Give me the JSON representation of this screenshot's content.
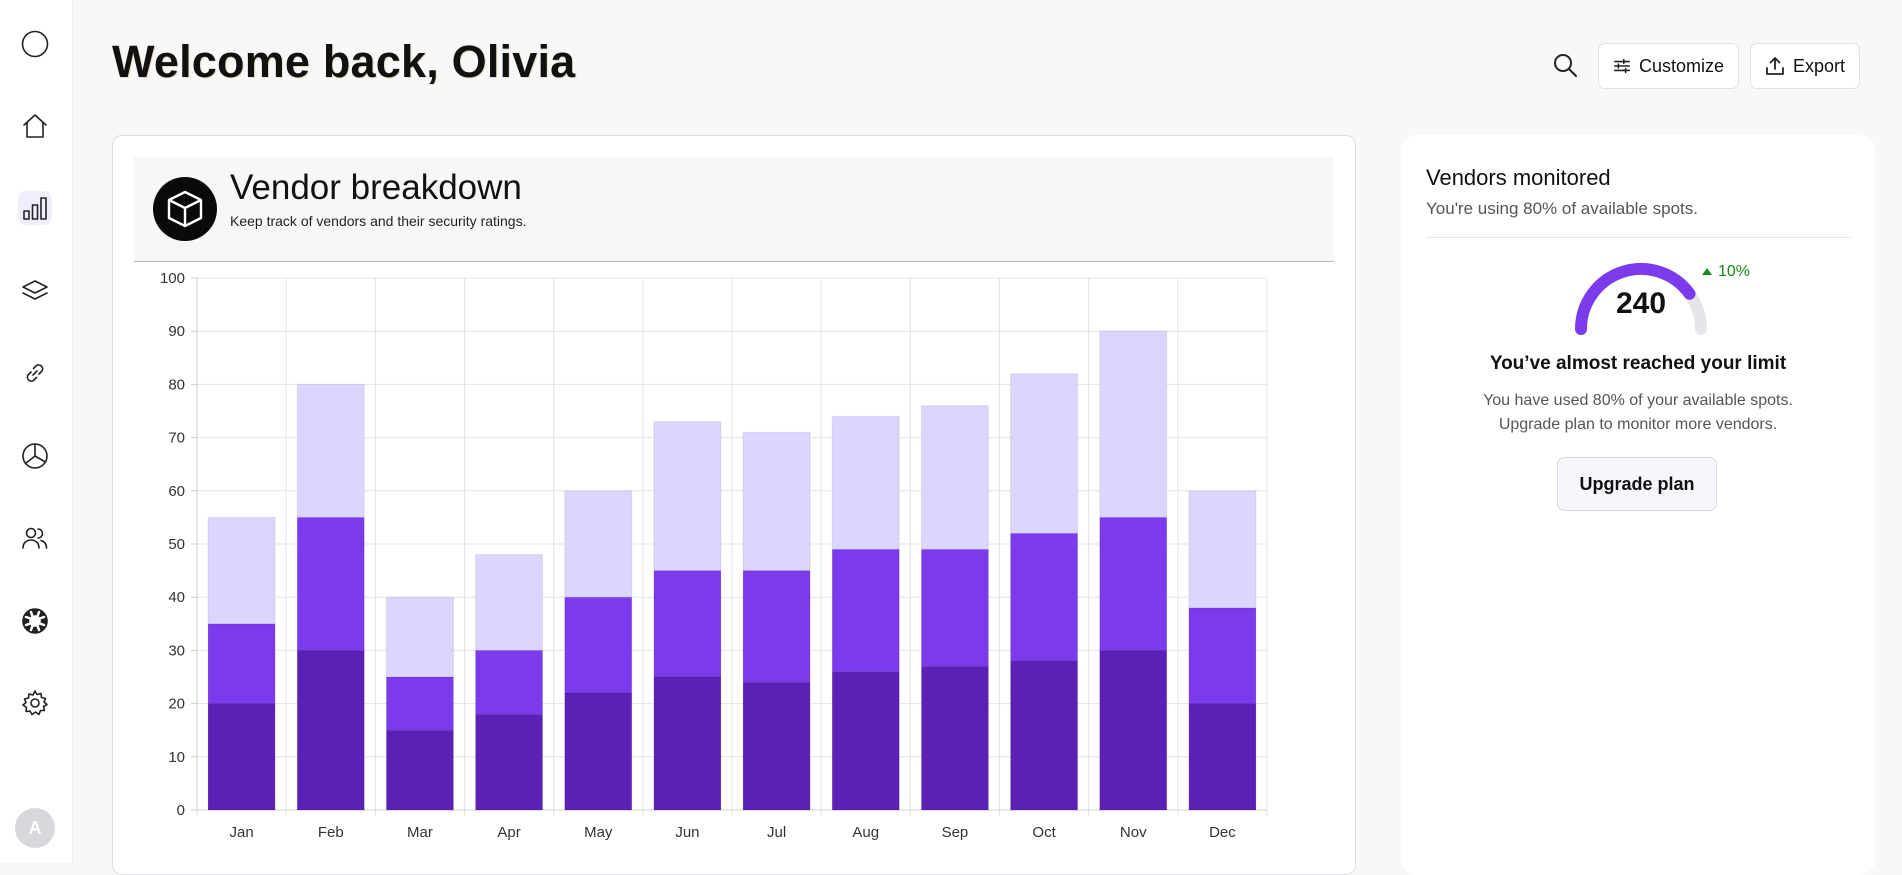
{
  "header": {
    "title": "Welcome back, Olivia",
    "customize_label": "Customize",
    "export_label": "Export"
  },
  "sidebar": {
    "items": [
      {
        "icon": "circle-icon"
      },
      {
        "icon": "home-icon"
      },
      {
        "icon": "bar-chart-icon",
        "active": true
      },
      {
        "icon": "layers-icon"
      },
      {
        "icon": "link-icon"
      },
      {
        "icon": "pie-chart-icon"
      },
      {
        "icon": "users-icon"
      },
      {
        "icon": "lifebuoy-icon"
      },
      {
        "icon": "gear-icon"
      }
    ],
    "avatar_initial": "A"
  },
  "vendor_card": {
    "title": "Vendor breakdown",
    "subtitle": "Keep track of vendors and their security ratings."
  },
  "chart_data": {
    "type": "bar",
    "stacked": true,
    "categories": [
      "Jan",
      "Feb",
      "Mar",
      "Apr",
      "May",
      "Jun",
      "Jul",
      "Aug",
      "Sep",
      "Oct",
      "Nov",
      "Dec"
    ],
    "series": [
      {
        "values": [
          20,
          30,
          15,
          18,
          22,
          25,
          24,
          26,
          27,
          28,
          30,
          20
        ],
        "color": "#5b21b6"
      },
      {
        "values": [
          15,
          25,
          10,
          12,
          18,
          20,
          21,
          23,
          22,
          24,
          25,
          18
        ],
        "color": "#7c3aed"
      },
      {
        "values": [
          20,
          25,
          15,
          18,
          20,
          28,
          26,
          25,
          27,
          30,
          35,
          22
        ],
        "color": "#dcd6fe"
      }
    ],
    "ylim": [
      0,
      100
    ],
    "yticks": [
      "0",
      "10",
      "20",
      "30",
      "40",
      "50",
      "60",
      "70",
      "80",
      "90",
      "100"
    ],
    "grid": true,
    "legend": "none"
  },
  "vendors_card": {
    "title": "Vendors monitored",
    "subtitle": "You're using 80% of available spots.",
    "gauge_value": "240",
    "gauge_fraction": 0.8,
    "trend": "10%",
    "limit_title": "You’ve almost reached your limit",
    "limit_line1": "You have used 80% of your available spots.",
    "limit_line2": "Upgrade plan to monitor more vendors.",
    "upgrade_label": "Upgrade plan"
  },
  "colors": {
    "accent": "#7c3aed",
    "accent_dark": "#5b21b6",
    "accent_light": "#dcd6fe",
    "positive": "#1a8a1a"
  }
}
